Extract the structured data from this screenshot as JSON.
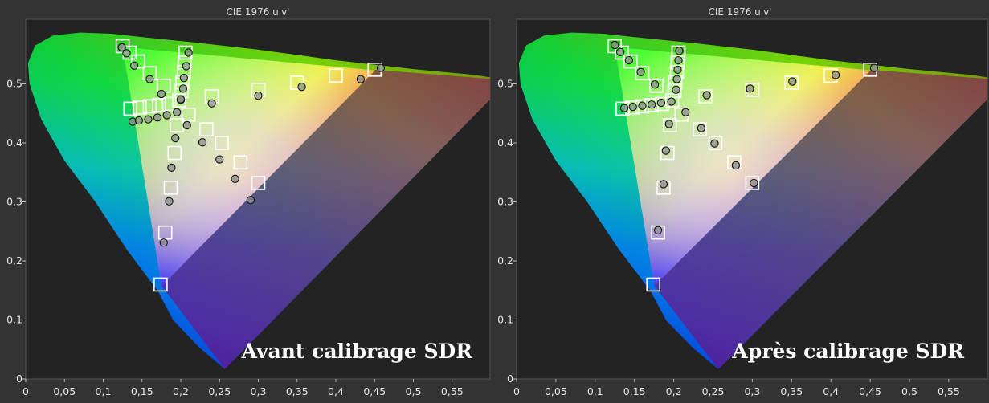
{
  "chart_data": [
    {
      "type": "scatter",
      "title": "CIE 1976 u'v'",
      "caption": "Avant calibrage SDR",
      "xlim": [
        0,
        0.6
      ],
      "ylim": [
        0,
        0.6
      ],
      "xticks": [
        "0",
        "0,05",
        "0,1",
        "0,15",
        "0,2",
        "0,25",
        "0,3",
        "0,35",
        "0,4",
        "0,45",
        "0,5",
        "0,55"
      ],
      "yticks": [
        "0",
        "0,1",
        "0,2",
        "0,3",
        "0,4",
        "0,5"
      ],
      "grid": false,
      "series": [
        {
          "marker": "square",
          "points": [
            [
              0.125,
              0.564
            ],
            [
              0.134,
              0.553
            ],
            [
              0.145,
              0.538
            ],
            [
              0.16,
              0.518
            ],
            [
              0.178,
              0.497
            ],
            [
              0.198,
              0.472
            ],
            [
              0.206,
              0.553
            ],
            [
              0.205,
              0.536
            ],
            [
              0.204,
              0.52
            ],
            [
              0.202,
              0.503
            ],
            [
              0.201,
              0.488
            ],
            [
              0.24,
              0.479
            ],
            [
              0.3,
              0.49
            ],
            [
              0.35,
              0.502
            ],
            [
              0.4,
              0.514
            ],
            [
              0.45,
              0.524
            ],
            [
              0.21,
              0.448
            ],
            [
              0.233,
              0.423
            ],
            [
              0.253,
              0.4
            ],
            [
              0.277,
              0.367
            ],
            [
              0.3,
              0.332
            ],
            [
              0.195,
              0.43
            ],
            [
              0.192,
              0.383
            ],
            [
              0.187,
              0.324
            ],
            [
              0.18,
              0.248
            ],
            [
              0.174,
              0.16
            ],
            [
              0.135,
              0.458
            ],
            [
              0.147,
              0.46
            ],
            [
              0.16,
              0.462
            ],
            [
              0.172,
              0.464
            ],
            [
              0.185,
              0.466
            ]
          ]
        },
        {
          "marker": "circle",
          "points": [
            [
              0.124,
              0.562
            ],
            [
              0.13,
              0.552
            ],
            [
              0.14,
              0.531
            ],
            [
              0.16,
              0.508
            ],
            [
              0.175,
              0.483
            ],
            [
              0.2,
              0.473
            ],
            [
              0.21,
              0.553
            ],
            [
              0.207,
              0.53
            ],
            [
              0.204,
              0.51
            ],
            [
              0.203,
              0.492
            ],
            [
              0.2,
              0.474
            ],
            [
              0.24,
              0.467
            ],
            [
              0.3,
              0.48
            ],
            [
              0.356,
              0.495
            ],
            [
              0.432,
              0.508
            ],
            [
              0.458,
              0.527
            ],
            [
              0.208,
              0.43
            ],
            [
              0.228,
              0.401
            ],
            [
              0.25,
              0.372
            ],
            [
              0.27,
              0.339
            ],
            [
              0.29,
              0.303
            ],
            [
              0.193,
              0.408
            ],
            [
              0.188,
              0.358
            ],
            [
              0.185,
              0.301
            ],
            [
              0.178,
              0.231
            ],
            [
              0.138,
              0.436
            ],
            [
              0.146,
              0.438
            ],
            [
              0.158,
              0.44
            ],
            [
              0.17,
              0.443
            ],
            [
              0.182,
              0.447
            ],
            [
              0.195,
              0.452
            ]
          ]
        }
      ]
    },
    {
      "type": "scatter",
      "title": "CIE 1976 u'v'",
      "caption": "Après calibrage SDR",
      "xlim": [
        0,
        0.6
      ],
      "ylim": [
        0,
        0.6
      ],
      "xticks": [
        "0",
        "0,05",
        "0,1",
        "0,15",
        "0,2",
        "0,25",
        "0,3",
        "0,35",
        "0,4",
        "0,45",
        "0,5",
        "0,55"
      ],
      "yticks": [
        "0",
        "0,1",
        "0,2",
        "0,3",
        "0,4",
        "0,5"
      ],
      "grid": false,
      "series": [
        {
          "marker": "square",
          "points": [
            [
              0.125,
              0.564
            ],
            [
              0.134,
              0.553
            ],
            [
              0.145,
              0.538
            ],
            [
              0.16,
              0.518
            ],
            [
              0.178,
              0.497
            ],
            [
              0.198,
              0.472
            ],
            [
              0.206,
              0.553
            ],
            [
              0.205,
              0.536
            ],
            [
              0.204,
              0.52
            ],
            [
              0.202,
              0.503
            ],
            [
              0.201,
              0.488
            ],
            [
              0.24,
              0.479
            ],
            [
              0.3,
              0.49
            ],
            [
              0.35,
              0.502
            ],
            [
              0.4,
              0.514
            ],
            [
              0.45,
              0.524
            ],
            [
              0.21,
              0.448
            ],
            [
              0.233,
              0.423
            ],
            [
              0.253,
              0.4
            ],
            [
              0.277,
              0.367
            ],
            [
              0.3,
              0.332
            ],
            [
              0.195,
              0.43
            ],
            [
              0.192,
              0.383
            ],
            [
              0.187,
              0.324
            ],
            [
              0.18,
              0.248
            ],
            [
              0.174,
              0.16
            ],
            [
              0.135,
              0.458
            ],
            [
              0.147,
              0.46
            ],
            [
              0.16,
              0.462
            ],
            [
              0.172,
              0.464
            ],
            [
              0.185,
              0.466
            ]
          ]
        },
        {
          "marker": "circle",
          "points": [
            [
              0.125,
              0.566
            ],
            [
              0.132,
              0.554
            ],
            [
              0.143,
              0.54
            ],
            [
              0.158,
              0.52
            ],
            [
              0.176,
              0.499
            ],
            [
              0.197,
              0.47
            ],
            [
              0.207,
              0.556
            ],
            [
              0.206,
              0.54
            ],
            [
              0.205,
              0.524
            ],
            [
              0.204,
              0.508
            ],
            [
              0.203,
              0.49
            ],
            [
              0.242,
              0.481
            ],
            [
              0.297,
              0.492
            ],
            [
              0.351,
              0.504
            ],
            [
              0.406,
              0.515
            ],
            [
              0.455,
              0.527
            ],
            [
              0.215,
              0.452
            ],
            [
              0.235,
              0.425
            ],
            [
              0.252,
              0.399
            ],
            [
              0.279,
              0.362
            ],
            [
              0.302,
              0.332
            ],
            [
              0.194,
              0.432
            ],
            [
              0.19,
              0.387
            ],
            [
              0.187,
              0.33
            ],
            [
              0.18,
              0.252
            ],
            [
              0.137,
              0.459
            ],
            [
              0.148,
              0.461
            ],
            [
              0.16,
              0.463
            ],
            [
              0.172,
              0.465
            ],
            [
              0.184,
              0.468
            ]
          ]
        }
      ]
    }
  ]
}
